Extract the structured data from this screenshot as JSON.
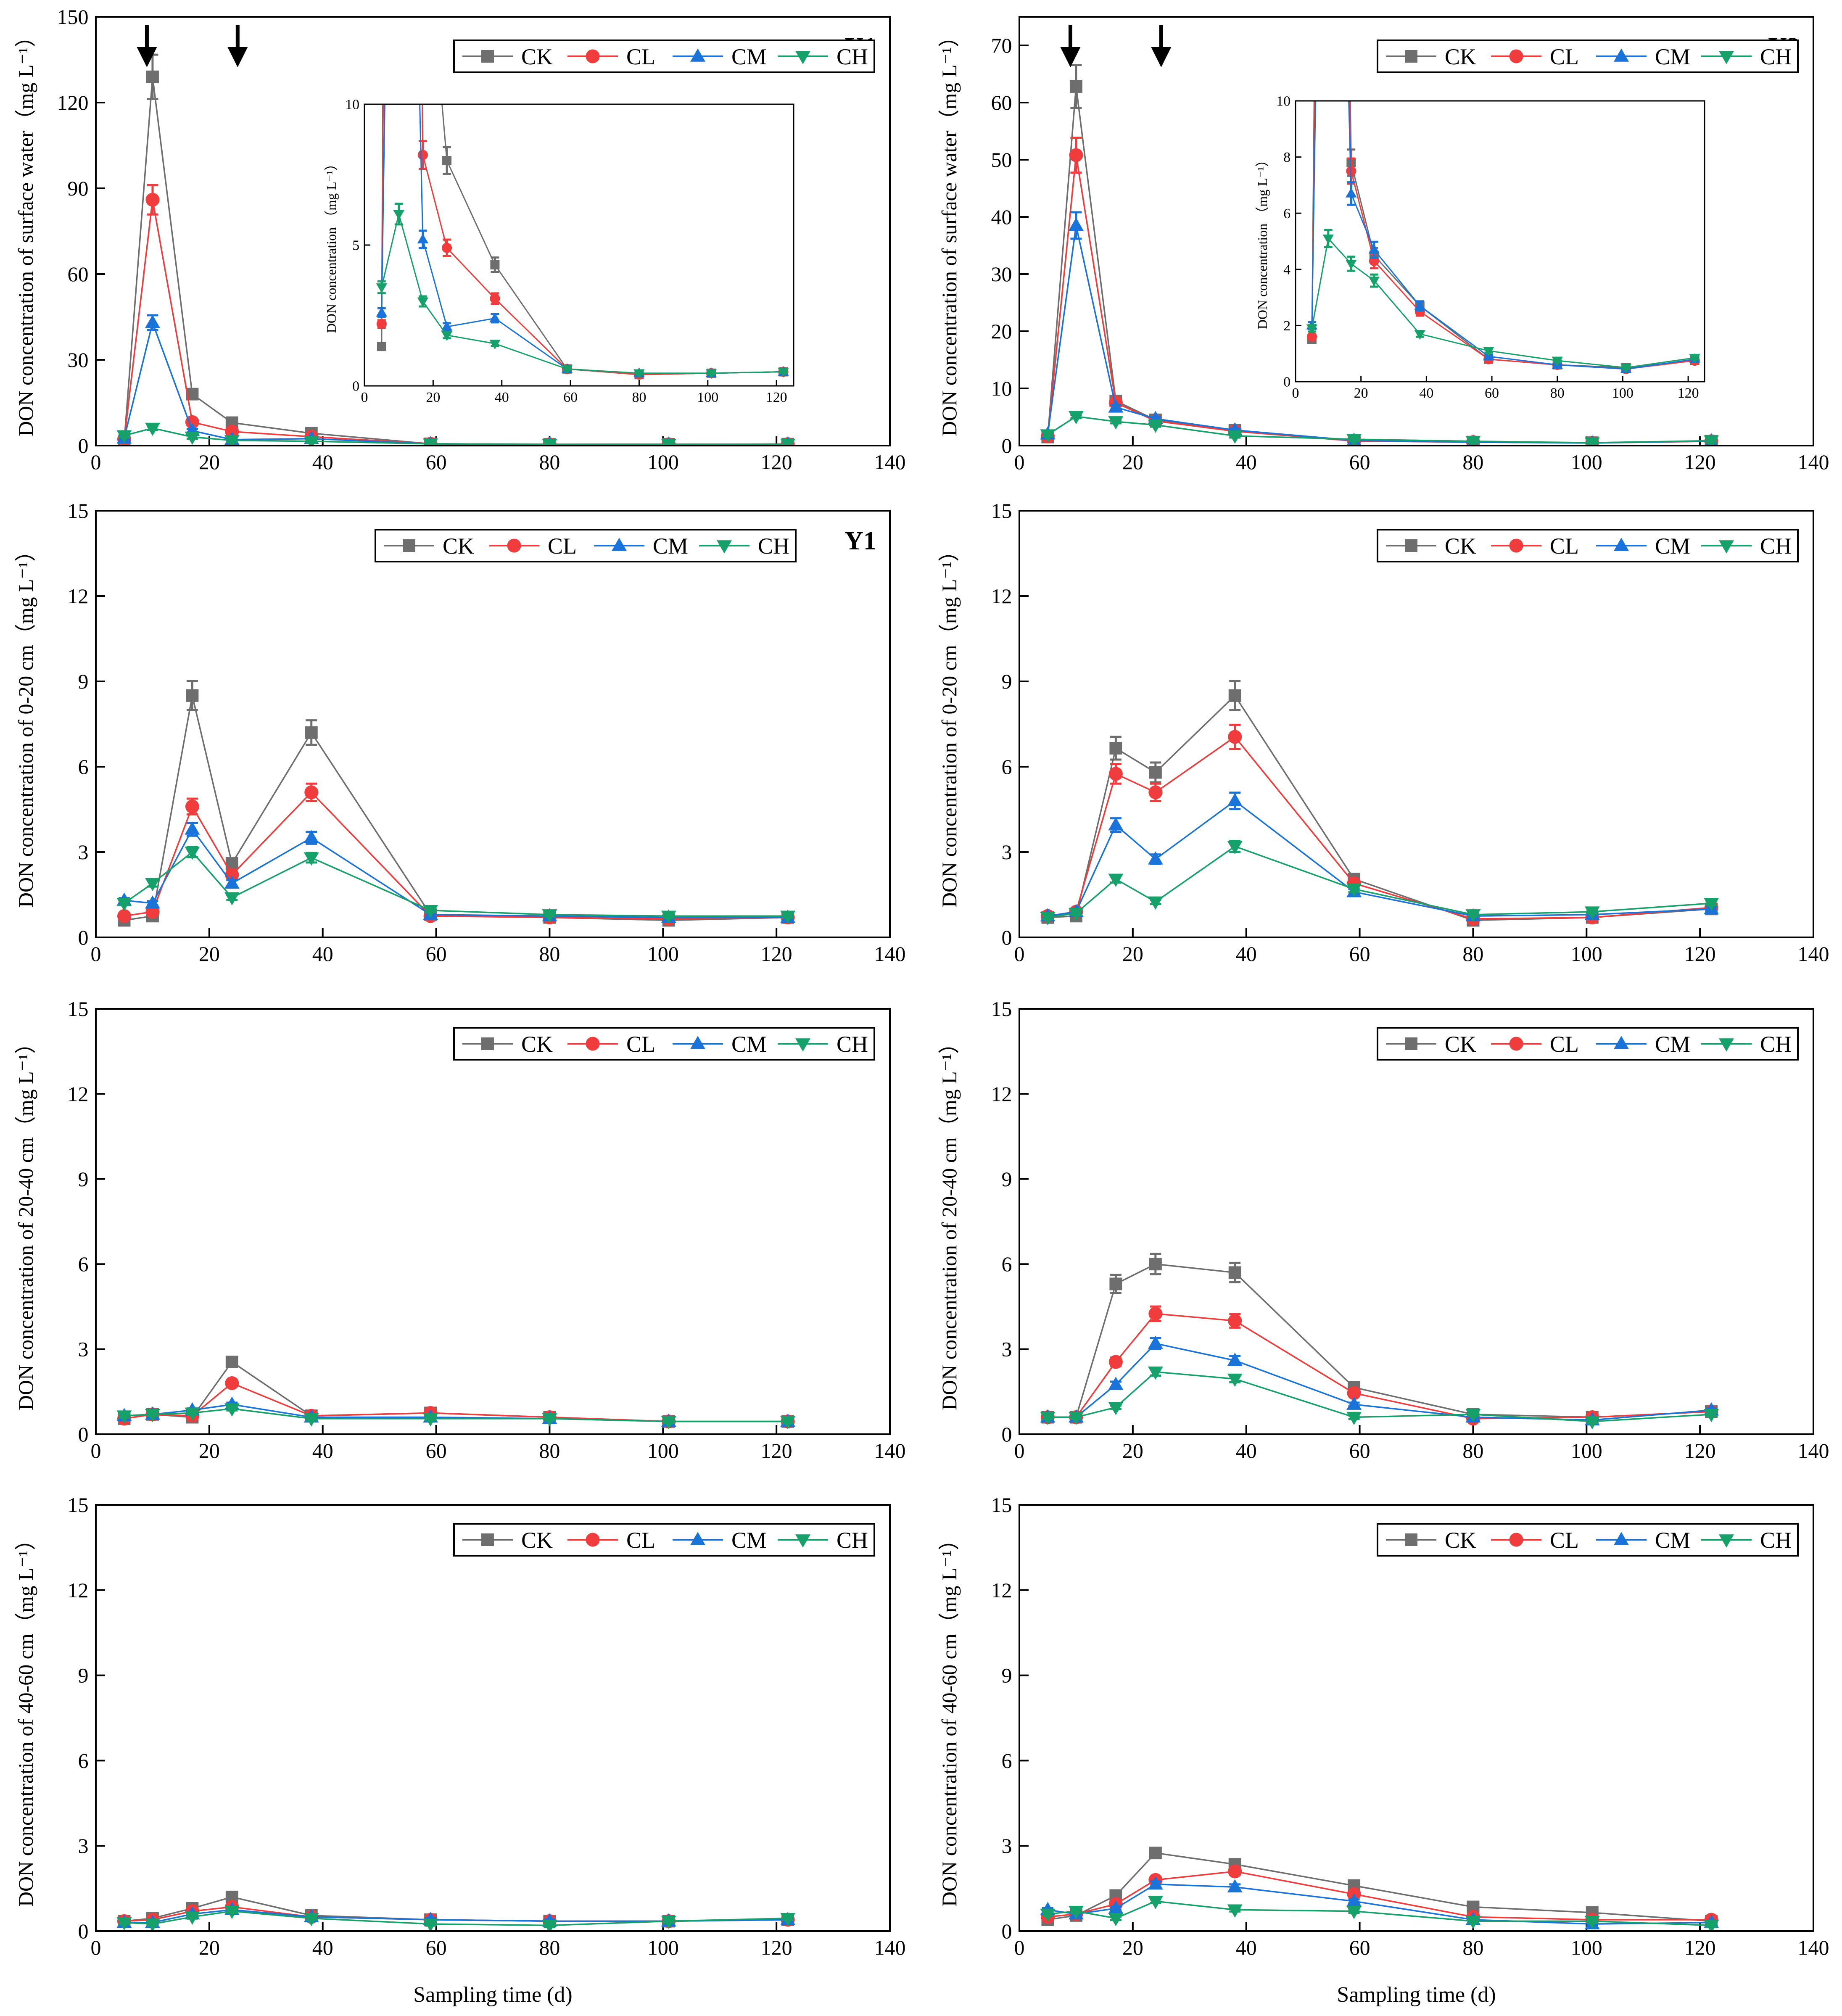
{
  "legend_names": [
    "CK",
    "CL",
    "CM",
    "CH"
  ],
  "colors": {
    "CK": "#6e6e6e",
    "CL": "#f03c3c",
    "CM": "#1a73d9",
    "CH": "#16a06a"
  },
  "x_axis_title": "Sampling time (d)",
  "chart_data": [
    {
      "type": "line",
      "panel": "Y1",
      "ylabel": "DON concentration of surface water（mg L⁻¹）",
      "xlim": [
        0,
        140
      ],
      "ylim": [
        0,
        150
      ],
      "xticks": [
        0,
        20,
        40,
        60,
        80,
        100,
        120,
        140
      ],
      "yticks": [
        0,
        30,
        60,
        90,
        120,
        150
      ],
      "arrows_at_x": [
        9,
        25
      ],
      "series": [
        {
          "name": "CK",
          "x": [
            5,
            10,
            17,
            24,
            38,
            59,
            80,
            101,
            122
          ],
          "y": [
            1.4,
            129,
            18,
            8,
            4.3,
            0.6,
            0.4,
            0.45,
            0.5
          ]
        },
        {
          "name": "CL",
          "x": [
            5,
            10,
            17,
            24,
            38,
            59,
            80,
            101,
            122
          ],
          "y": [
            2.2,
            86,
            8.2,
            4.9,
            3.1,
            0.6,
            0.4,
            0.45,
            0.5
          ]
        },
        {
          "name": "CM",
          "x": [
            5,
            10,
            17,
            24,
            38,
            59,
            80,
            101,
            122
          ],
          "y": [
            2.6,
            43,
            5.2,
            2.1,
            2.4,
            0.6,
            0.45,
            0.45,
            0.5
          ]
        },
        {
          "name": "CH",
          "x": [
            5,
            10,
            17,
            24,
            38,
            59,
            80,
            101,
            122
          ],
          "y": [
            3.5,
            6.1,
            3.0,
            1.8,
            1.5,
            0.6,
            0.45,
            0.45,
            0.5
          ]
        }
      ],
      "inset": {
        "ylabel": "DON concentration （mg L⁻¹）",
        "xlim": [
          0,
          125
        ],
        "ylim": [
          0,
          10
        ],
        "xticks": [
          0,
          20,
          40,
          60,
          80,
          100,
          120
        ],
        "yticks": [
          0,
          5,
          10
        ]
      }
    },
    {
      "type": "line",
      "panel": "Y2",
      "ylabel": "DON concentration of surface water（mg L⁻¹）",
      "xlim": [
        0,
        140
      ],
      "ylim": [
        0,
        75
      ],
      "xticks": [
        0,
        20,
        40,
        60,
        80,
        100,
        120,
        140
      ],
      "yticks": [
        0,
        10,
        20,
        30,
        40,
        50,
        60,
        70
      ],
      "arrows_at_x": [
        9,
        25
      ],
      "series": [
        {
          "name": "CK",
          "x": [
            5,
            10,
            17,
            24,
            38,
            59,
            80,
            101,
            122
          ],
          "y": [
            1.5,
            62.8,
            7.8,
            4.5,
            2.7,
            0.8,
            0.6,
            0.5,
            0.75
          ]
        },
        {
          "name": "CL",
          "x": [
            5,
            10,
            17,
            24,
            38,
            59,
            80,
            101,
            122
          ],
          "y": [
            1.6,
            50.8,
            7.5,
            4.3,
            2.5,
            0.8,
            0.6,
            0.45,
            0.75
          ]
        },
        {
          "name": "CM",
          "x": [
            5,
            10,
            17,
            24,
            38,
            59,
            80,
            101,
            122
          ],
          "y": [
            2.0,
            38.5,
            6.7,
            4.7,
            2.7,
            0.9,
            0.6,
            0.45,
            0.8
          ]
        },
        {
          "name": "CH",
          "x": [
            5,
            10,
            17,
            24,
            38,
            59,
            80,
            101,
            122
          ],
          "y": [
            1.9,
            5.1,
            4.2,
            3.6,
            1.7,
            1.1,
            0.75,
            0.5,
            0.85
          ]
        }
      ],
      "inset": {
        "ylabel": "DON concentration （mg L⁻¹）",
        "xlim": [
          0,
          125
        ],
        "ylim": [
          0,
          10
        ],
        "xticks": [
          0,
          20,
          40,
          60,
          80,
          100,
          120
        ],
        "yticks": [
          0,
          2,
          4,
          6,
          8,
          10
        ]
      }
    },
    {
      "type": "line",
      "panel": "Y1",
      "ylabel": "DON concentration of  0-20 cm（mg L⁻¹）",
      "xlim": [
        0,
        140
      ],
      "ylim": [
        0,
        15
      ],
      "xticks": [
        0,
        20,
        40,
        60,
        80,
        100,
        120,
        140
      ],
      "yticks": [
        0,
        3,
        6,
        9,
        12,
        15
      ],
      "series": [
        {
          "name": "CK",
          "x": [
            5,
            10,
            17,
            24,
            38,
            59,
            80,
            101,
            122
          ],
          "y": [
            0.6,
            0.75,
            8.5,
            2.6,
            7.2,
            0.8,
            0.7,
            0.6,
            0.7
          ]
        },
        {
          "name": "CL",
          "x": [
            5,
            10,
            17,
            24,
            38,
            59,
            80,
            101,
            122
          ],
          "y": [
            0.75,
            0.9,
            4.6,
            2.2,
            5.1,
            0.75,
            0.7,
            0.65,
            0.7
          ]
        },
        {
          "name": "CM",
          "x": [
            5,
            10,
            17,
            24,
            38,
            59,
            80,
            101,
            122
          ],
          "y": [
            1.3,
            1.2,
            3.8,
            1.9,
            3.5,
            0.8,
            0.75,
            0.7,
            0.7
          ]
        },
        {
          "name": "CH",
          "x": [
            5,
            10,
            17,
            24,
            38,
            59,
            80,
            101,
            122
          ],
          "y": [
            1.2,
            1.9,
            3.0,
            1.4,
            2.8,
            0.95,
            0.8,
            0.75,
            0.75
          ]
        }
      ]
    },
    {
      "type": "line",
      "panel": "Y2",
      "ylabel": "DON concentration of  0-20 cm（mg L⁻¹）",
      "xlim": [
        0,
        140
      ],
      "ylim": [
        0,
        15
      ],
      "xticks": [
        0,
        20,
        40,
        60,
        80,
        100,
        120,
        140
      ],
      "yticks": [
        0,
        3,
        6,
        9,
        12,
        15
      ],
      "series": [
        {
          "name": "CK",
          "x": [
            5,
            10,
            17,
            24,
            38,
            59,
            80,
            101,
            122
          ],
          "y": [
            0.7,
            0.75,
            6.65,
            5.8,
            8.5,
            2.05,
            0.6,
            0.7,
            1.0
          ]
        },
        {
          "name": "CL",
          "x": [
            5,
            10,
            17,
            24,
            38,
            59,
            80,
            101,
            122
          ],
          "y": [
            0.75,
            0.9,
            5.75,
            5.1,
            7.05,
            1.9,
            0.65,
            0.7,
            1.05
          ]
        },
        {
          "name": "CM",
          "x": [
            5,
            10,
            17,
            24,
            38,
            59,
            80,
            101,
            122
          ],
          "y": [
            0.75,
            0.9,
            3.95,
            2.75,
            4.8,
            1.6,
            0.75,
            0.8,
            1.0
          ]
        },
        {
          "name": "CH",
          "x": [
            5,
            10,
            17,
            24,
            38,
            59,
            80,
            101,
            122
          ],
          "y": [
            0.7,
            0.85,
            2.05,
            1.25,
            3.2,
            1.7,
            0.8,
            0.9,
            1.2
          ]
        }
      ]
    },
    {
      "type": "line",
      "panel": "Y1",
      "ylabel": "DON concentration of  20-40 cm（mg L⁻¹）",
      "xlim": [
        0,
        140
      ],
      "ylim": [
        0,
        15
      ],
      "xticks": [
        0,
        20,
        40,
        60,
        80,
        100,
        120,
        140
      ],
      "yticks": [
        0,
        3,
        6,
        9,
        12,
        15
      ],
      "series": [
        {
          "name": "CK",
          "x": [
            5,
            10,
            17,
            24,
            38,
            59,
            80,
            101,
            122
          ],
          "y": [
            0.55,
            0.7,
            0.6,
            2.55,
            0.65,
            0.75,
            0.6,
            0.45,
            0.45
          ]
        },
        {
          "name": "CL",
          "x": [
            5,
            10,
            17,
            24,
            38,
            59,
            80,
            101,
            122
          ],
          "y": [
            0.55,
            0.7,
            0.65,
            1.8,
            0.65,
            0.75,
            0.6,
            0.45,
            0.45
          ]
        },
        {
          "name": "CM",
          "x": [
            5,
            10,
            17,
            24,
            38,
            59,
            80,
            101,
            122
          ],
          "y": [
            0.65,
            0.7,
            0.85,
            1.05,
            0.6,
            0.6,
            0.55,
            0.45,
            0.45
          ]
        },
        {
          "name": "CH",
          "x": [
            5,
            10,
            17,
            24,
            38,
            59,
            80,
            101,
            122
          ],
          "y": [
            0.65,
            0.7,
            0.75,
            0.9,
            0.55,
            0.55,
            0.55,
            0.45,
            0.45
          ]
        }
      ]
    },
    {
      "type": "line",
      "panel": "Y2",
      "ylabel": "DON concentration of 20-40 cm（mg L⁻¹）",
      "xlim": [
        0,
        140
      ],
      "ylim": [
        0,
        15
      ],
      "xticks": [
        0,
        20,
        40,
        60,
        80,
        100,
        120,
        140
      ],
      "yticks": [
        0,
        3,
        6,
        9,
        12,
        15
      ],
      "series": [
        {
          "name": "CK",
          "x": [
            5,
            10,
            17,
            24,
            38,
            59,
            80,
            101,
            122
          ],
          "y": [
            0.6,
            0.6,
            5.3,
            6.0,
            5.7,
            1.65,
            0.7,
            0.6,
            0.8
          ]
        },
        {
          "name": "CL",
          "x": [
            5,
            10,
            17,
            24,
            38,
            59,
            80,
            101,
            122
          ],
          "y": [
            0.6,
            0.6,
            2.55,
            4.25,
            4.0,
            1.45,
            0.55,
            0.6,
            0.8
          ]
        },
        {
          "name": "CM",
          "x": [
            5,
            10,
            17,
            24,
            38,
            59,
            80,
            101,
            122
          ],
          "y": [
            0.6,
            0.6,
            1.75,
            3.2,
            2.6,
            1.05,
            0.6,
            0.5,
            0.85
          ]
        },
        {
          "name": "CH",
          "x": [
            5,
            10,
            17,
            24,
            38,
            59,
            80,
            101,
            122
          ],
          "y": [
            0.6,
            0.6,
            0.95,
            2.2,
            1.95,
            0.6,
            0.7,
            0.45,
            0.7
          ]
        }
      ]
    },
    {
      "type": "line",
      "panel": "Y1",
      "ylabel": "DON concentration of  40-60 cm（mg L⁻¹）",
      "xlim": [
        0,
        140
      ],
      "ylim": [
        0,
        15
      ],
      "xticks": [
        0,
        20,
        40,
        60,
        80,
        100,
        120,
        140
      ],
      "yticks": [
        0,
        3,
        6,
        9,
        12,
        15
      ],
      "series": [
        {
          "name": "CK",
          "x": [
            5,
            10,
            17,
            24,
            38,
            59,
            80,
            101,
            122
          ],
          "y": [
            0.35,
            0.45,
            0.8,
            1.2,
            0.55,
            0.4,
            0.35,
            0.35,
            0.4
          ]
        },
        {
          "name": "CL",
          "x": [
            5,
            10,
            17,
            24,
            38,
            59,
            80,
            101,
            122
          ],
          "y": [
            0.35,
            0.4,
            0.7,
            0.85,
            0.5,
            0.4,
            0.35,
            0.35,
            0.4
          ]
        },
        {
          "name": "CM",
          "x": [
            5,
            10,
            17,
            24,
            38,
            59,
            80,
            101,
            122
          ],
          "y": [
            0.3,
            0.3,
            0.6,
            0.75,
            0.5,
            0.4,
            0.35,
            0.35,
            0.4
          ]
        },
        {
          "name": "CH",
          "x": [
            5,
            10,
            17,
            24,
            38,
            59,
            80,
            101,
            122
          ],
          "y": [
            0.3,
            0.25,
            0.5,
            0.7,
            0.45,
            0.25,
            0.2,
            0.35,
            0.45
          ]
        }
      ]
    },
    {
      "type": "line",
      "panel": "Y2",
      "ylabel": "DON concentration of  40-60 cm（mg L⁻¹）",
      "xlim": [
        0,
        140
      ],
      "ylim": [
        0,
        15
      ],
      "xticks": [
        0,
        20,
        40,
        60,
        80,
        100,
        120,
        140
      ],
      "yticks": [
        0,
        3,
        6,
        9,
        12,
        15
      ],
      "series": [
        {
          "name": "CK",
          "x": [
            5,
            10,
            17,
            24,
            38,
            59,
            80,
            101,
            122
          ],
          "y": [
            0.4,
            0.55,
            1.25,
            2.75,
            2.35,
            1.6,
            0.85,
            0.65,
            0.35
          ]
        },
        {
          "name": "CL",
          "x": [
            5,
            10,
            17,
            24,
            38,
            59,
            80,
            101,
            122
          ],
          "y": [
            0.5,
            0.6,
            0.95,
            1.8,
            2.1,
            1.3,
            0.5,
            0.4,
            0.4
          ]
        },
        {
          "name": "CM",
          "x": [
            5,
            10,
            17,
            24,
            38,
            59,
            80,
            101,
            122
          ],
          "y": [
            0.75,
            0.6,
            0.8,
            1.65,
            1.55,
            1.05,
            0.4,
            0.25,
            0.3
          ]
        },
        {
          "name": "CH",
          "x": [
            5,
            10,
            17,
            24,
            38,
            59,
            80,
            101,
            122
          ],
          "y": [
            0.6,
            0.7,
            0.45,
            1.05,
            0.75,
            0.7,
            0.35,
            0.35,
            0.2
          ]
        }
      ]
    }
  ]
}
